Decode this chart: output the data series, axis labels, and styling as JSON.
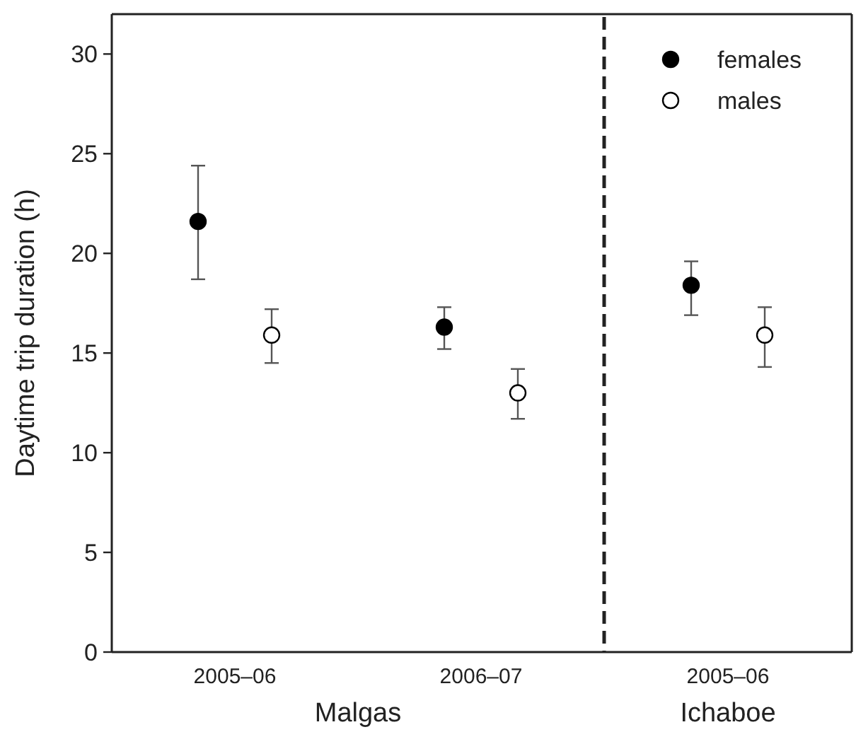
{
  "chart_data": [
    {
      "type": "scatter",
      "categories": [
        "2005–06",
        "2006–07"
      ],
      "xlabel": "Malgas",
      "ylabel": "Daytime trip duration (h)",
      "ylim": [
        0,
        32
      ],
      "yticks": [
        0,
        5,
        10,
        15,
        20,
        25,
        30
      ],
      "marker": "circle",
      "legend": false,
      "series": [
        {
          "color": "#000000",
          "values": [
            21.6,
            16.3
          ],
          "errors": [
            [
              18.7,
              24.4
            ],
            [
              15.2,
              17.3
            ]
          ]
        },
        {
          "color": "#ffffff",
          "values": [
            15.9,
            13.0
          ],
          "errors": [
            [
              14.5,
              17.2
            ],
            [
              11.7,
              14.2
            ]
          ]
        }
      ]
    },
    {
      "type": "scatter",
      "categories": [
        "2005–06"
      ],
      "xlabel": "Ichaboe",
      "ylim": [
        0,
        32
      ],
      "yticks": [
        0,
        5,
        10,
        15,
        20,
        25,
        30
      ],
      "tick_labels": "x",
      "marker": "circle",
      "legend": "top right",
      "series": [
        {
          "name": "females",
          "color": "#000000",
          "values": [
            18.4
          ],
          "errors": [
            [
              16.9,
              19.6
            ]
          ]
        },
        {
          "name": "males",
          "color": "#ffffff",
          "values": [
            15.9
          ],
          "errors": [
            [
              14.3,
              17.3
            ]
          ]
        }
      ]
    }
  ]
}
